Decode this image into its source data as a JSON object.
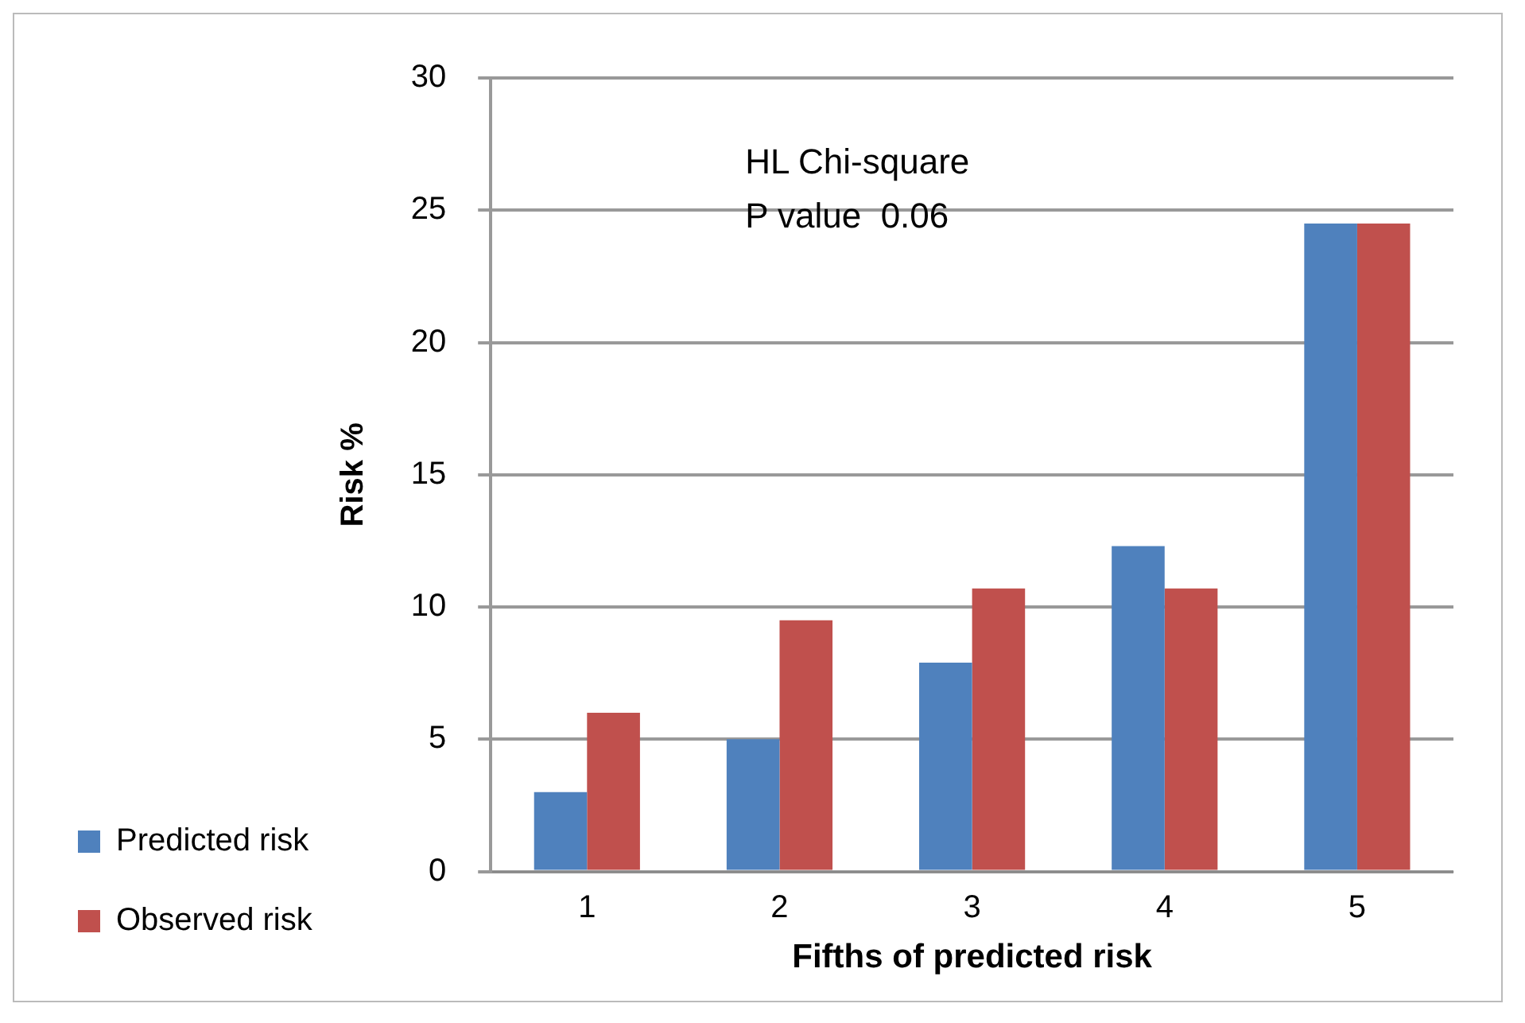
{
  "chart_data": {
    "type": "bar",
    "xlabel": "Fifths of predicted risk",
    "ylabel": "Risk %",
    "categories": [
      "1",
      "2",
      "3",
      "4",
      "5"
    ],
    "series": [
      {
        "name": "Predicted risk",
        "color": "#4f81bd",
        "values": [
          3.0,
          5.0,
          7.9,
          12.3,
          24.5
        ]
      },
      {
        "name": "Observed risk",
        "color": "#c0504d",
        "values": [
          6.0,
          9.5,
          10.7,
          10.7,
          24.5
        ]
      }
    ],
    "ylim": [
      0,
      30
    ],
    "yticks": [
      0,
      5,
      10,
      15,
      20,
      25,
      30
    ],
    "grid": "y",
    "legend": "bottom left",
    "annotations": [
      "HL Chi-square",
      "P value  0.06"
    ]
  }
}
